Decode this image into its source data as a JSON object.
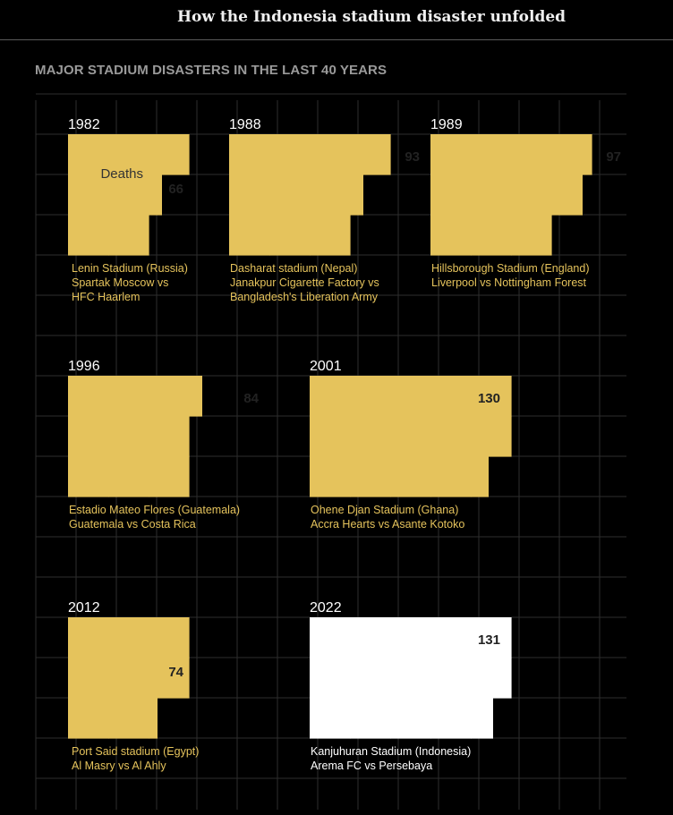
{
  "header": {
    "title": "How the Indonesia stadium disaster unfolded"
  },
  "section": {
    "title": "MAJOR STADIUM DISASTERS IN THE LAST 40 YEARS"
  },
  "colors": {
    "background": "#000000",
    "grid": "#2e2e2e",
    "past": "#e5c35c",
    "highlight": "#ffffff",
    "caption_past": "#e5c35c",
    "caption_highlight": "#ffffff"
  },
  "chart_data": {
    "type": "unit-area",
    "unit_label": "Deaths",
    "grid": true,
    "items": [
      {
        "year": "1982",
        "deaths": 66,
        "venue": "Lenin Stadium (Russia)",
        "match": [
          "Spartak Moscow vs",
          "HFC Haarlem"
        ],
        "highlight": false
      },
      {
        "year": "1988",
        "deaths": 93,
        "venue": "Dasharat stadium (Nepal)",
        "match": [
          "Janakpur Cigarette Factory vs",
          "Bangladesh's Liberation Army"
        ],
        "highlight": false
      },
      {
        "year": "1989",
        "deaths": 97,
        "venue": "Hillsborough Stadium (England)",
        "match": [
          "Liverpool vs Nottingham Forest"
        ],
        "highlight": false
      },
      {
        "year": "1996",
        "deaths": 84,
        "venue": "Estadio Mateo Flores (Guatemala)",
        "match": [
          "Guatemala vs Costa Rica"
        ],
        "highlight": false
      },
      {
        "year": "2001",
        "deaths": 130,
        "venue": "Ohene Djan Stadium (Ghana)",
        "match": [
          "Accra Hearts vs Asante Kotoko"
        ],
        "highlight": false
      },
      {
        "year": "2012",
        "deaths": 74,
        "venue": "Port Said stadium (Egypt)",
        "match": [
          "Al Masry vs Al Ahly"
        ],
        "highlight": false
      },
      {
        "year": "2022",
        "deaths": 131,
        "venue": "Kanjuhuran Stadium (Indonesia)",
        "match": [
          "Arema FC vs Persebaya"
        ],
        "highlight": true
      }
    ]
  }
}
